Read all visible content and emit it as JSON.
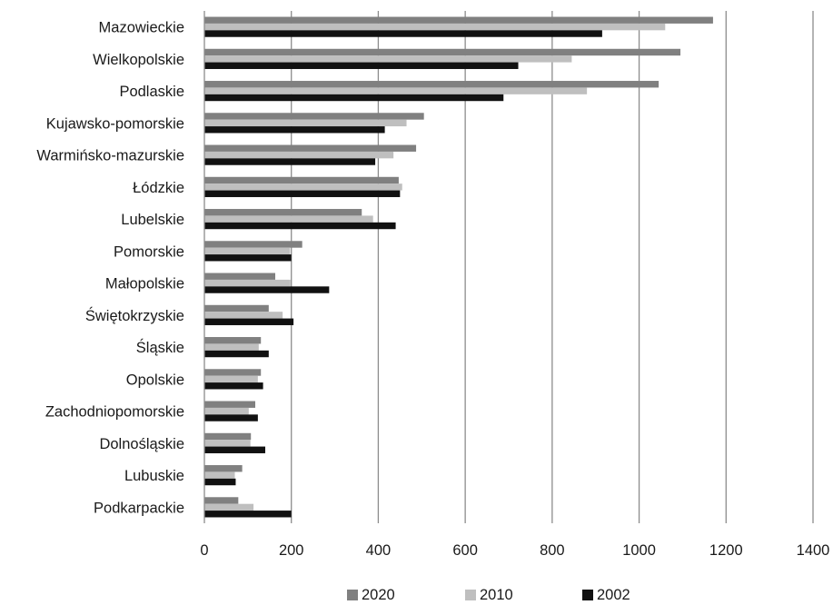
{
  "chart_data": {
    "type": "bar",
    "orientation": "horizontal",
    "categories": [
      "Mazowieckie",
      "Wielkopolskie",
      "Podlaskie",
      "Kujawsko-pomorskie",
      "Warmińsko-mazurskie",
      "Łódzkie",
      "Lubelskie",
      "Pomorskie",
      "Małopolskie",
      "Świętokrzyskie",
      "Śląskie",
      "Opolskie",
      "Zachodniopomorskie",
      "Dolnośląskie",
      "Lubuskie",
      "Podkarpackie"
    ],
    "series": [
      {
        "name": "2020",
        "color": "#808080",
        "values": [
          1170,
          1095,
          1045,
          505,
          487,
          447,
          362,
          225,
          163,
          148,
          130,
          130,
          117,
          107,
          87,
          78
        ]
      },
      {
        "name": "2010",
        "color": "#bfbfbf",
        "values": [
          1060,
          845,
          880,
          465,
          435,
          455,
          388,
          197,
          198,
          180,
          125,
          123,
          102,
          106,
          70,
          113
        ]
      },
      {
        "name": "2002",
        "color": "#111111",
        "values": [
          915,
          722,
          688,
          415,
          393,
          450,
          440,
          200,
          287,
          205,
          148,
          135,
          123,
          140,
          72,
          200
        ]
      }
    ],
    "xlim": [
      0,
      1400
    ],
    "x_ticks": [
      0,
      200,
      400,
      600,
      800,
      1000,
      1200,
      1400
    ],
    "grid": "vertical",
    "legend": "bottom",
    "title": "",
    "xlabel": "",
    "ylabel": ""
  }
}
